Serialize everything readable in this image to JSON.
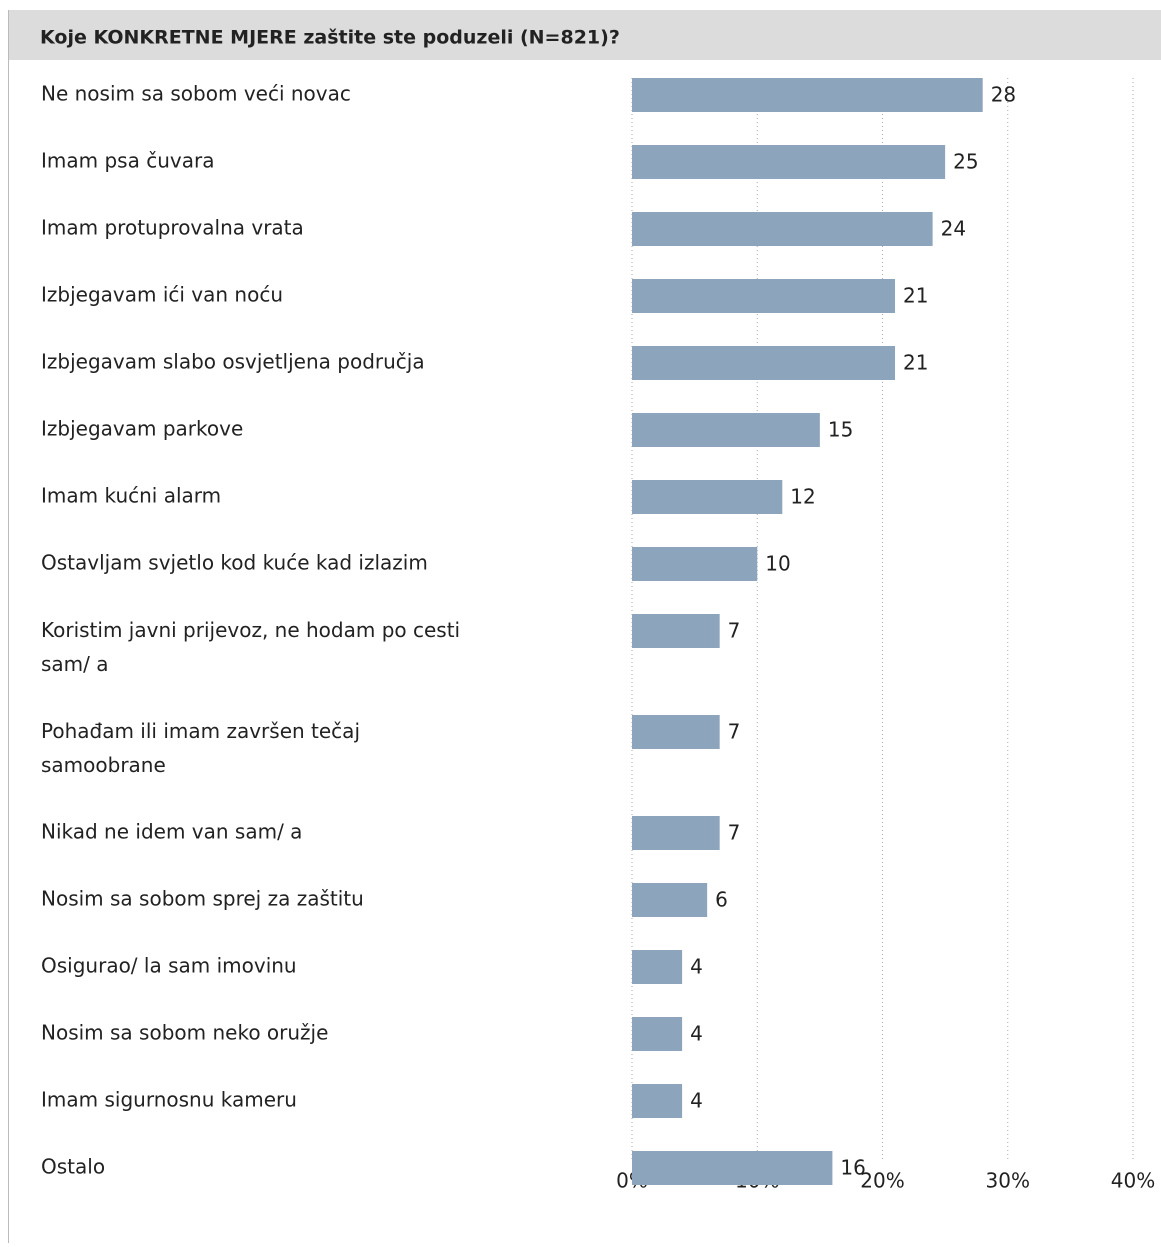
{
  "chart_data": {
    "type": "bar",
    "orientation": "horizontal",
    "title": "Koje KONKRETNE MJERE zaštite ste poduzeli (N=821)?",
    "categories": [
      "Ne nosim sa sobom veći novac",
      "Imam psa čuvara",
      "Imam protuprovalna vrata",
      "Izbjegavam ići van noću",
      "Izbjegavam slabo osvjetljena područja",
      "Izbjegavam parkove",
      "Imam kućni alarm",
      "Ostavljam svjetlo kod kuće kad izlazim",
      "Koristim javni prijevoz, ne hodam po cesti sam/ a",
      "Pohađam ili imam završen tečaj samoobrane",
      "Nikad ne idem van sam/ a",
      "Nosim sa sobom sprej za zaštitu",
      "Osigurao/ la sam imovinu",
      "Nosim sa sobom neko oružje",
      "Imam sigurnosnu kameru",
      "Ostalo"
    ],
    "values": [
      28,
      25,
      24,
      21,
      21,
      15,
      12,
      10,
      7,
      7,
      7,
      6,
      4,
      4,
      4,
      16
    ],
    "color": "#8da5bc",
    "xlim": [
      0,
      40
    ],
    "xticks": [
      {
        "value": 0,
        "label": "0%"
      },
      {
        "value": 10,
        "label": "10%"
      },
      {
        "value": 20,
        "label": "20%"
      },
      {
        "value": 30,
        "label": "30%"
      },
      {
        "value": 40,
        "label": "40%"
      }
    ],
    "grid": true
  }
}
